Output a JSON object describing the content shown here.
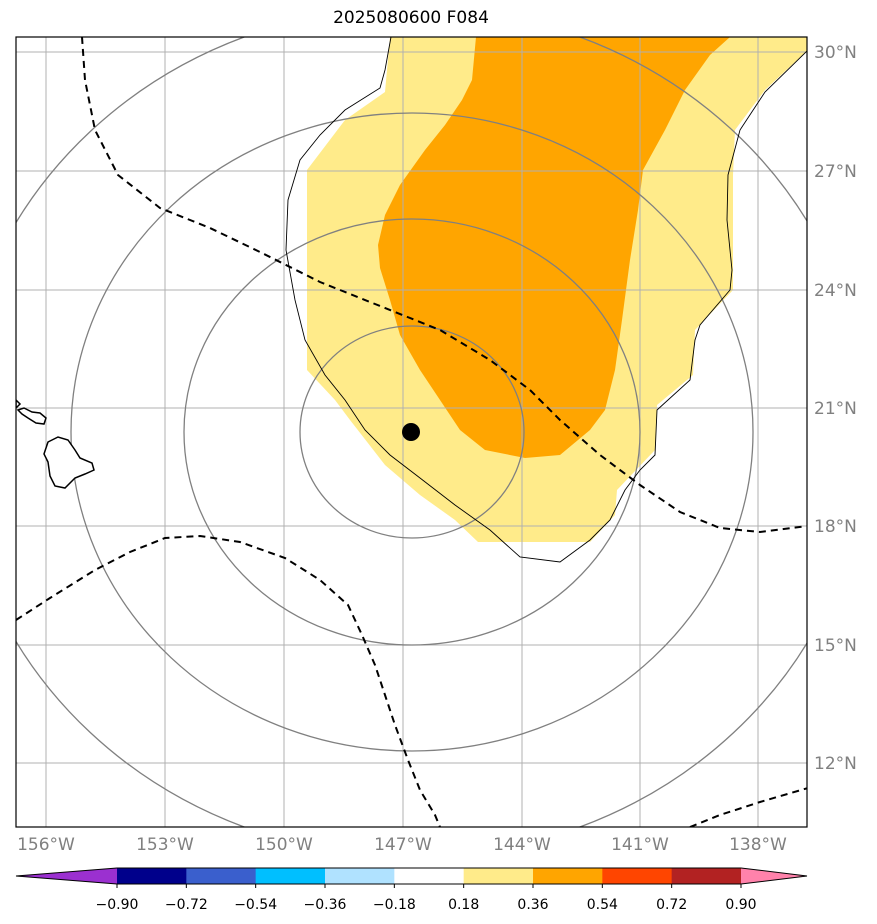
{
  "title": "2025080600 F084",
  "latitude_labels": [
    "30°N",
    "27°N",
    "24°N",
    "21°N",
    "18°N",
    "15°N",
    "12°N"
  ],
  "longitude_labels": [
    "156°W",
    "153°W",
    "150°W",
    "147°W",
    "144°W",
    "141°W",
    "138°W"
  ],
  "colorbar": {
    "ticks": [
      "−0.90",
      "−0.72",
      "−0.54",
      "−0.36",
      "−0.18",
      "0.18",
      "0.36",
      "0.54",
      "0.72",
      "0.90"
    ],
    "colors": [
      "#9b30d0",
      "#00008b",
      "#3a5fcd",
      "#00bfff",
      "#b0e2ff",
      "#ffffff",
      "#ffeb8a",
      "#ffa500",
      "#ff4500",
      "#b22222",
      "#ff82ab"
    ]
  },
  "marker": {
    "label": "storm-center",
    "color": "#000000"
  },
  "colors": {
    "light_yellow": "#ffeb8a",
    "orange": "#ffa500",
    "range_ring": "#808080",
    "grid": "#b0b0b0"
  }
}
